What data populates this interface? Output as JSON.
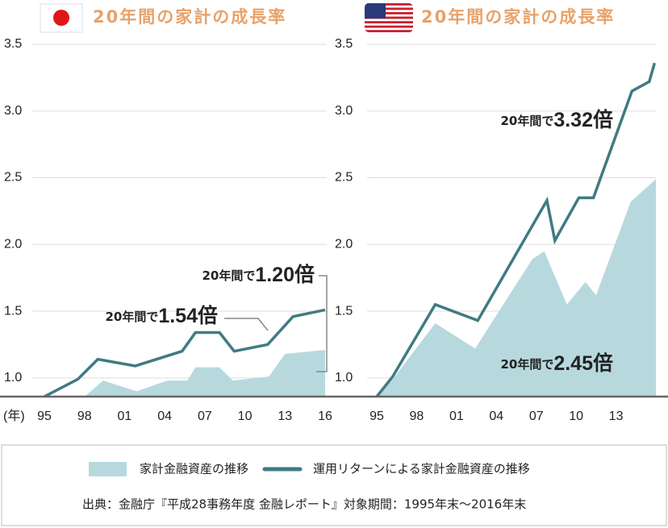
{
  "chart_data": [
    {
      "type": "line",
      "title": "20年間の家計の成長率",
      "x_unit_label": "(年)",
      "xlim": [
        1995,
        2016
      ],
      "ylim": [
        0.86,
        3.5
      ],
      "xticks": [
        {
          "value": 1995,
          "label": "95"
        },
        {
          "value": 1998,
          "label": "98"
        },
        {
          "value": 2001,
          "label": "01"
        },
        {
          "value": 2004,
          "label": "04"
        },
        {
          "value": 2007,
          "label": "07"
        },
        {
          "value": 2010,
          "label": "10"
        },
        {
          "value": 2013,
          "label": "13"
        },
        {
          "value": 2016,
          "label": "16"
        }
      ],
      "yticks": [
        {
          "value": 1,
          "label": "1.0"
        },
        1.5,
        {
          "value": 2,
          "label": "2.0"
        },
        2.5,
        {
          "value": 3,
          "label": "3.0"
        },
        3.5
      ],
      "grid": true,
      "series": [
        {
          "name": "家計金融資産の推移",
          "kind": "area",
          "color": "#b7d9de",
          "x": [
            1995,
            1998,
            1999.4,
            2001.9,
            2004.2,
            2005.7,
            2006.3,
            2008.1,
            2009.1,
            2011.8,
            2013,
            2016
          ],
          "values": [
            0.86,
            0.86,
            0.98,
            0.9,
            0.98,
            0.98,
            1.08,
            1.08,
            0.98,
            1.01,
            1.18,
            1.21
          ]
        },
        {
          "name": "運用リターンによる家計金融資産の推移",
          "kind": "line",
          "color": "#3f7b82",
          "x": [
            1995,
            1997.5,
            1999,
            2001.8,
            2005.3,
            2006.3,
            2008.1,
            2009.2,
            2011.7,
            2013.6,
            2016
          ],
          "values": [
            0.86,
            0.99,
            1.14,
            1.09,
            1.2,
            1.34,
            1.34,
            1.2,
            1.25,
            1.46,
            1.51
          ]
        }
      ],
      "annotations": [
        {
          "prefix": "20年間で",
          "value": "1.54倍"
        },
        {
          "prefix": "20年間で",
          "value": "1.20倍"
        }
      ]
    },
    {
      "type": "line",
      "title": "20年間の家計の成長率",
      "xlim": [
        1995,
        2016
      ],
      "ylim": [
        0.86,
        3.5
      ],
      "xticks": [
        {
          "value": 1995,
          "label": "95"
        },
        {
          "value": 1998,
          "label": "98"
        },
        {
          "value": 2001,
          "label": "01"
        },
        {
          "value": 2004,
          "label": "04"
        },
        {
          "value": 2007,
          "label": "07"
        },
        {
          "value": 2010,
          "label": "10"
        },
        {
          "value": 2013,
          "label": "13"
        }
      ],
      "yticks": [
        {
          "value": 1,
          "label": "1.0"
        },
        1.5,
        {
          "value": 2,
          "label": "2.0"
        },
        2.5,
        {
          "value": 3,
          "label": "3.0"
        },
        3.5
      ],
      "grid": true,
      "series": [
        {
          "name": "家計金融資産の推移",
          "kind": "area",
          "color": "#b7d9de",
          "x": [
            1995,
            1996.2,
            1999.4,
            2002.4,
            2006.7,
            2007.6,
            2009.3,
            2010.7,
            2011.5,
            2014.1,
            2016
          ],
          "values": [
            0.86,
            0.99,
            1.41,
            1.22,
            1.89,
            1.95,
            1.55,
            1.72,
            1.62,
            2.32,
            2.49
          ]
        },
        {
          "name": "運用リターンによる家計金融資産の推移",
          "kind": "line",
          "color": "#3f7b82",
          "x": [
            1995,
            1996.2,
            1999.4,
            2002.6,
            2007.8,
            2008.4,
            2010.2,
            2011.3,
            2014.2,
            2015.5,
            2015.9
          ],
          "values": [
            0.86,
            1.01,
            1.55,
            1.43,
            2.33,
            2.03,
            2.35,
            2.35,
            3.15,
            3.22,
            3.36
          ]
        }
      ],
      "annotations": [
        {
          "prefix": "20年間で",
          "value": "3.32倍"
        },
        {
          "prefix": "20年間で",
          "value": "2.45倍"
        }
      ]
    }
  ],
  "source": "出典：金融庁『平成28事務年度 金融レポート』対象期間：1995年末〜2016年末"
}
